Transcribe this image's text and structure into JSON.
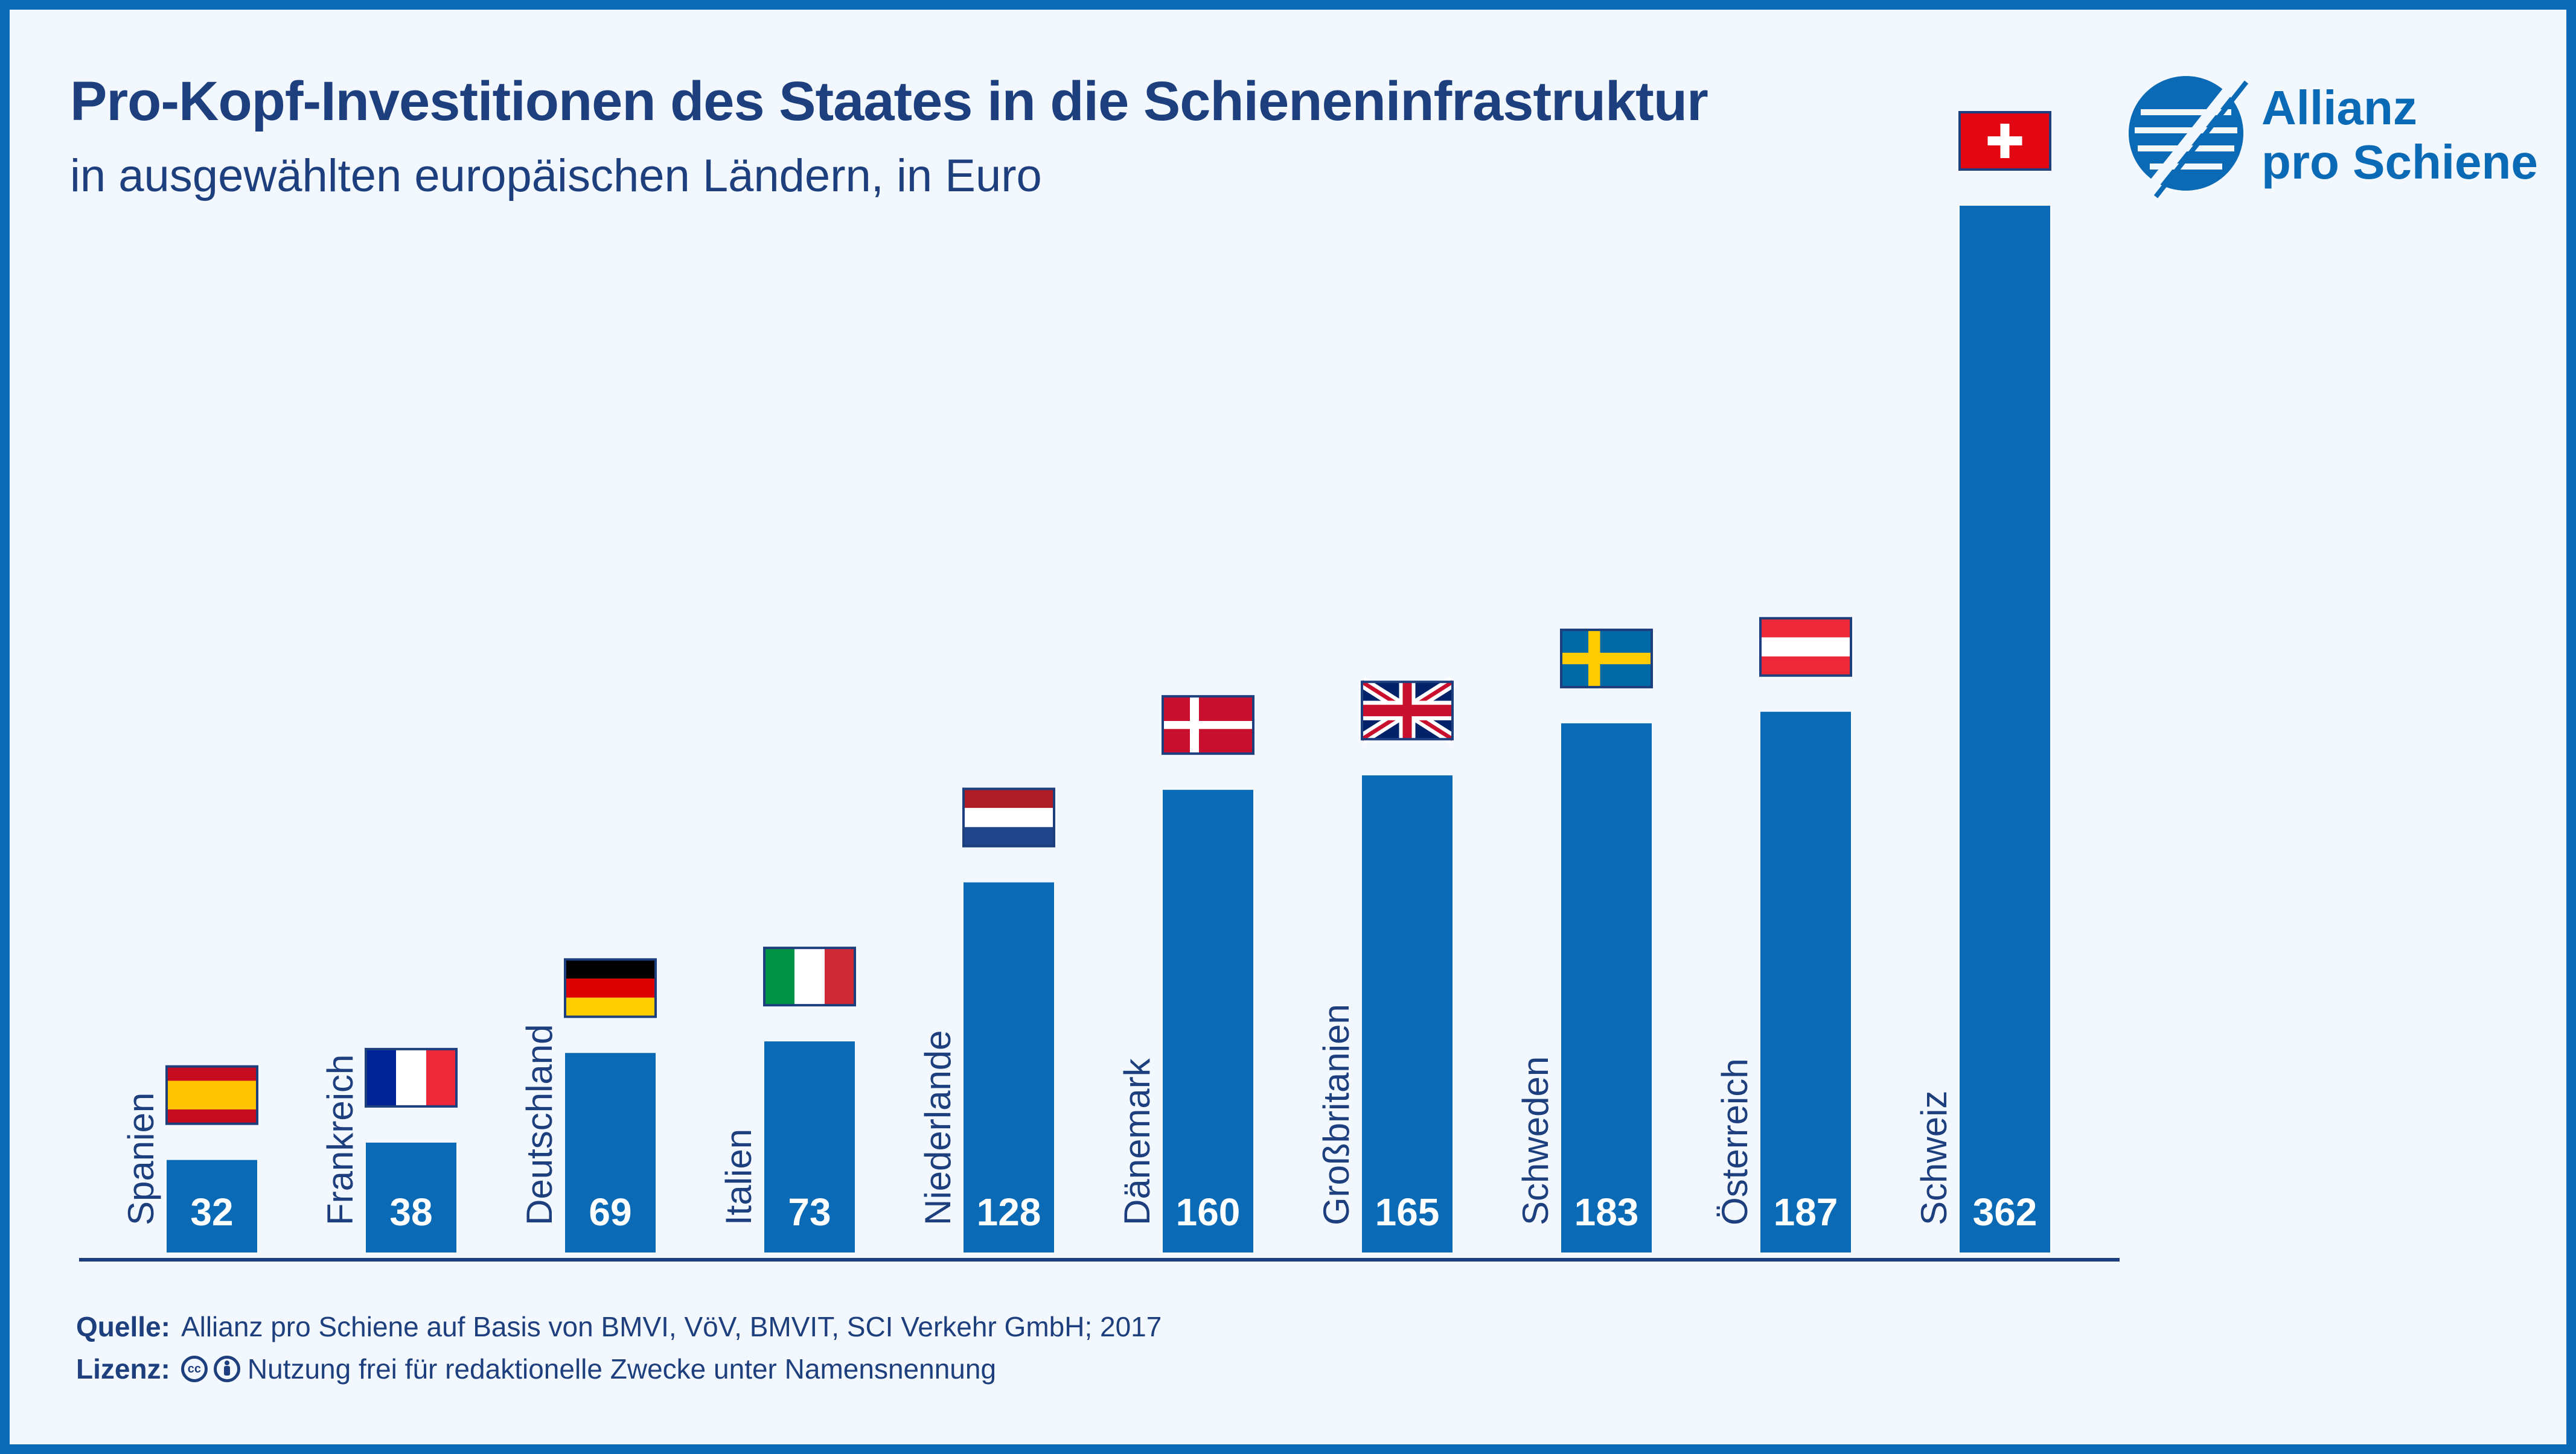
{
  "title": "Pro-Kopf-Investitionen des Staates in die Schieneninfrastruktur",
  "subtitle": "in ausgewählten europäischen Ländern, in Euro",
  "logo": {
    "line1": "Allianz",
    "line2": "pro Schiene",
    "icon": "allianz-logo-icon"
  },
  "footer": {
    "source_label": "Quelle:",
    "source_text": "Allianz pro Schiene auf Basis von BMVI, VöV, BMVIT, SCI Verkehr GmbH; 2017",
    "license_label": "Lizenz:",
    "license_text": "Nutzung frei für redaktionelle Zwecke unter Namensnennung",
    "license_icons": [
      "cc-icon",
      "by-person-icon"
    ]
  },
  "colors": {
    "bar": "#0a6ab5",
    "title": "#1d3f7e",
    "background": "#f2f8fd",
    "border": "#0a6ab5"
  },
  "chart_data": {
    "type": "bar",
    "categories": [
      "Spanien",
      "Frankreich",
      "Deutschland",
      "Italien",
      "Niederlande",
      "Dänemark",
      "Großbritanien",
      "Schweden",
      "Österreich",
      "Schweiz"
    ],
    "values": [
      32,
      38,
      69,
      73,
      128,
      160,
      165,
      183,
      187,
      362
    ],
    "flags": [
      "spain-flag-icon",
      "france-flag-icon",
      "germany-flag-icon",
      "italy-flag-icon",
      "netherlands-flag-icon",
      "denmark-flag-icon",
      "uk-flag-icon",
      "sweden-flag-icon",
      "austria-flag-icon",
      "switzerland-flag-icon"
    ],
    "ylim": [
      0,
      362
    ],
    "grid": false,
    "legend": "none",
    "data_labels": "inside-bar-bottom",
    "category_labels": "rotated-vertical-left-of-bar"
  }
}
